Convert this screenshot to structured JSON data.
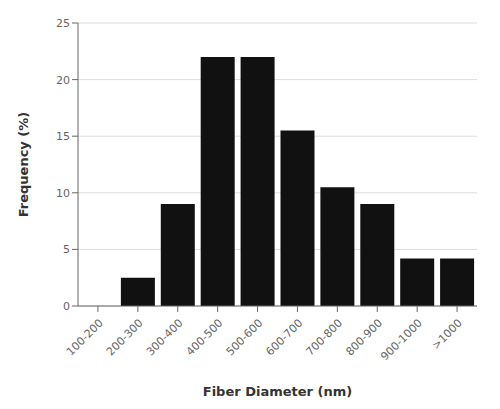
{
  "chart_data": {
    "type": "bar",
    "categories": [
      "100-200",
      "200-300",
      "300-400",
      "400-500",
      "500-600",
      "600-700",
      "700-800",
      "800-900",
      "900-1000",
      ">1000"
    ],
    "values": [
      0,
      2.5,
      9.0,
      22.0,
      22.0,
      15.5,
      10.5,
      9.0,
      4.2,
      4.2
    ],
    "color": "#111111",
    "xlabel": "Fiber Diameter (nm)",
    "ylabel": "Frequency (%)",
    "ylim": [
      0,
      25
    ],
    "yticks": [
      0,
      5,
      10,
      15,
      20,
      25
    ],
    "grid": true
  }
}
